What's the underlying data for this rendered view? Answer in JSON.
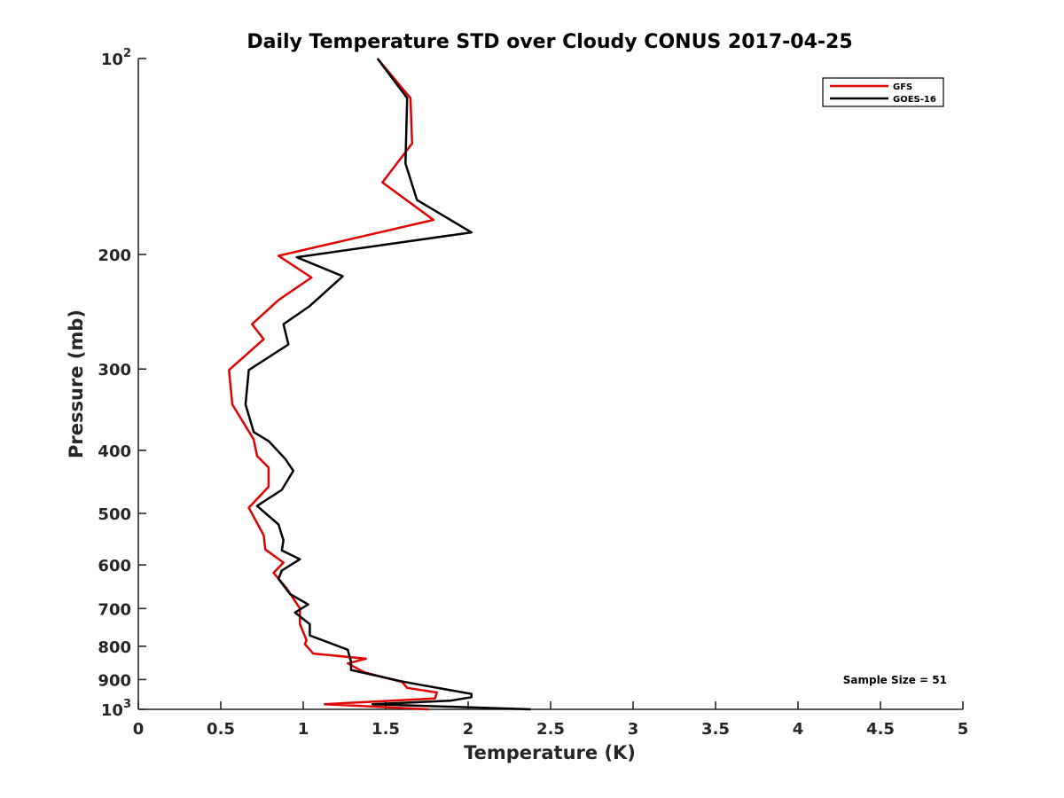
{
  "chart_data": {
    "type": "line",
    "title": "Daily Temperature STD over Cloudy CONUS 2017-04-25",
    "xlabel": "Temperature (K)",
    "ylabel": "Pressure (mb)",
    "xlim": [
      0,
      5
    ],
    "ylim": [
      100,
      1000
    ],
    "y_scale": "log",
    "y_reversed": true,
    "x_ticks": [
      0,
      0.5,
      1,
      1.5,
      2,
      2.5,
      3,
      3.5,
      4,
      4.5,
      5
    ],
    "x_tick_labels": [
      "0",
      "0.5",
      "1",
      "1.5",
      "2",
      "2.5",
      "3",
      "3.5",
      "4",
      "4.5",
      "5"
    ],
    "y_ticks": [
      100,
      200,
      300,
      400,
      500,
      600,
      700,
      800,
      900,
      1000
    ],
    "y_tick_labels": [
      {
        "base": "10",
        "exp": "2"
      },
      {
        "base": "200",
        "exp": ""
      },
      {
        "base": "300",
        "exp": ""
      },
      {
        "base": "400",
        "exp": ""
      },
      {
        "base": "500",
        "exp": ""
      },
      {
        "base": "600",
        "exp": ""
      },
      {
        "base": "700",
        "exp": ""
      },
      {
        "base": "800",
        "exp": ""
      },
      {
        "base": "900",
        "exp": ""
      },
      {
        "base": "10",
        "exp": "3"
      }
    ],
    "grid": false,
    "legend_position": "top-right",
    "annotation": "Sample Size = 51",
    "series": [
      {
        "name": "GFS",
        "color": "#e00000",
        "points": [
          [
            1.45,
            100
          ],
          [
            1.65,
            115
          ],
          [
            1.66,
            135
          ],
          [
            1.48,
            155
          ],
          [
            1.79,
            177
          ],
          [
            0.85,
            201
          ],
          [
            1.05,
            217
          ],
          [
            0.85,
            235
          ],
          [
            0.69,
            256
          ],
          [
            0.76,
            270
          ],
          [
            0.55,
            301
          ],
          [
            0.57,
            340
          ],
          [
            0.7,
            385
          ],
          [
            0.72,
            408
          ],
          [
            0.79,
            425
          ],
          [
            0.79,
            455
          ],
          [
            0.67,
            490
          ],
          [
            0.76,
            540
          ],
          [
            0.77,
            568
          ],
          [
            0.88,
            595
          ],
          [
            0.82,
            617
          ],
          [
            0.9,
            652
          ],
          [
            0.98,
            700
          ],
          [
            0.98,
            740
          ],
          [
            1.02,
            783
          ],
          [
            1.01,
            794
          ],
          [
            1.06,
            821
          ],
          [
            1.38,
            836
          ],
          [
            1.27,
            850
          ],
          [
            1.37,
            877
          ],
          [
            1.6,
            908
          ],
          [
            1.63,
            927
          ],
          [
            1.81,
            942
          ],
          [
            1.8,
            962
          ],
          [
            1.13,
            982
          ],
          [
            1.76,
            1000
          ]
        ]
      },
      {
        "name": "GOES-16",
        "color": "#000000",
        "points": [
          [
            1.45,
            100
          ],
          [
            1.63,
            115
          ],
          [
            1.62,
            145
          ],
          [
            1.69,
            165
          ],
          [
            2.02,
            185
          ],
          [
            0.96,
            202
          ],
          [
            1.24,
            216
          ],
          [
            1.04,
            240
          ],
          [
            0.88,
            256
          ],
          [
            0.91,
            275
          ],
          [
            0.67,
            301
          ],
          [
            0.65,
            340
          ],
          [
            0.7,
            375
          ],
          [
            0.79,
            387
          ],
          [
            0.89,
            412
          ],
          [
            0.94,
            430
          ],
          [
            0.87,
            460
          ],
          [
            0.72,
            487
          ],
          [
            0.85,
            520
          ],
          [
            0.88,
            550
          ],
          [
            0.87,
            570
          ],
          [
            0.98,
            588
          ],
          [
            0.87,
            612
          ],
          [
            0.85,
            630
          ],
          [
            0.92,
            665
          ],
          [
            1.03,
            690
          ],
          [
            0.95,
            710
          ],
          [
            1.04,
            740
          ],
          [
            1.04,
            770
          ],
          [
            1.27,
            810
          ],
          [
            1.29,
            845
          ],
          [
            1.29,
            870
          ],
          [
            1.59,
            905
          ],
          [
            1.72,
            918
          ],
          [
            2.02,
            947
          ],
          [
            2.02,
            958
          ],
          [
            1.89,
            970
          ],
          [
            1.42,
            982
          ],
          [
            2.38,
            1000
          ]
        ]
      }
    ]
  }
}
